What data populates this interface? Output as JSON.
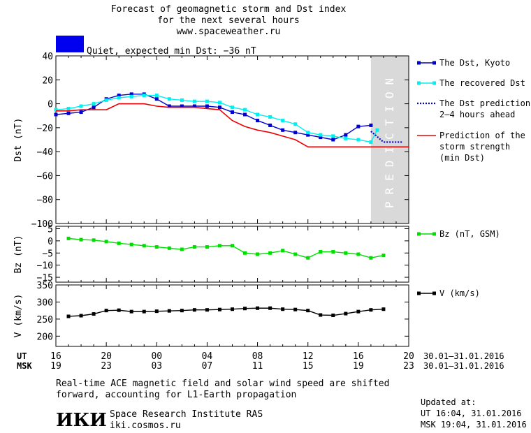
{
  "header": {
    "title_line1": "Forecast of geomagnetic storm and Dst index",
    "title_line2": "for the next several hours",
    "website": "www.spaceweather.ru",
    "status_color": "#0000ee",
    "status_text": "Quiet, expected min Dst: −36 nT"
  },
  "footer": {
    "note_line1": "Real-time ACE magnetic field and solar wind speed are shifted",
    "note_line2": "forward, accounting for L1-Earth propagation",
    "logo_text": "ИКИ",
    "institute": "Space Research Institute RAS",
    "institute_site": "iki.cosmos.ru",
    "updated_label": "Updated at:",
    "updated_ut": "UT   16:04, 31.01.2016",
    "updated_msk": "MSK 19:04, 31.01.2016"
  },
  "time_axis": {
    "ut_label": "UT",
    "msk_label": "MSK",
    "ut_ticks": [
      "16",
      "20",
      "00",
      "04",
      "08",
      "12",
      "16",
      "20"
    ],
    "msk_ticks": [
      "19",
      "23",
      "03",
      "07",
      "11",
      "15",
      "19",
      "23"
    ],
    "date_range_ut": "30.01–31.01.2016",
    "date_range_msk": "30.01–31.01.2016"
  },
  "chart_data": [
    {
      "type": "line",
      "ylabel": "Dst (nT)",
      "ylim": [
        -100,
        40
      ],
      "yticks": [
        "40",
        "20",
        "0",
        "−20",
        "−40",
        "−60",
        "−80",
        "−100"
      ],
      "ytick_values": [
        40,
        20,
        0,
        -20,
        -40,
        -60,
        -80,
        -100
      ],
      "xlim": [
        16,
        44
      ],
      "prediction_band": {
        "x_start": 41,
        "x_end": 44,
        "label": "PREDICTION",
        "color": "#d9d9d9"
      },
      "series": [
        {
          "name": "The Dst, Kyoto",
          "color": "#0000cc",
          "style": "solid-squares",
          "x": [
            16,
            17,
            18,
            19,
            20,
            21,
            22,
            23,
            24,
            25,
            26,
            27,
            28,
            29,
            30,
            31,
            32,
            33,
            34,
            35,
            36,
            37,
            38,
            39,
            40,
            41
          ],
          "y": [
            -9,
            -8,
            -7,
            -3,
            4,
            7,
            8,
            8,
            4,
            -2,
            -2,
            -2,
            -2,
            -3,
            -7,
            -9,
            -14,
            -18,
            -22,
            -24,
            -26,
            -28,
            -30,
            -26,
            -19,
            -18
          ]
        },
        {
          "name": "The recovered Dst",
          "color": "#00f0f0",
          "style": "solid-squares",
          "x": [
            16,
            17,
            18,
            19,
            20,
            21,
            22,
            23,
            24,
            25,
            26,
            27,
            28,
            29,
            30,
            31,
            32,
            33,
            34,
            35,
            36,
            37,
            38,
            39,
            40,
            41,
            41.5
          ],
          "y": [
            -5,
            -4,
            -2,
            0,
            3,
            5,
            6,
            7,
            7,
            4,
            3,
            2,
            2,
            1,
            -3,
            -5,
            -9,
            -11,
            -14,
            -17,
            -24,
            -26,
            -27,
            -29,
            -30,
            -32,
            -22
          ]
        },
        {
          "name": "The Dst prediction\n2–4 hours ahead",
          "color": "#0000cc",
          "style": "dotted",
          "x": [
            41,
            42,
            43.5
          ],
          "y": [
            -23,
            -32,
            -32
          ]
        },
        {
          "name": "Prediction of the\nstorm strength\n(min Dst)",
          "color": "#ee0000",
          "style": "solid",
          "x": [
            16,
            17,
            18,
            19,
            20,
            21,
            22,
            23,
            24,
            25,
            26,
            27,
            28,
            29,
            30,
            31,
            32,
            33,
            34,
            35,
            36,
            44
          ],
          "y": [
            -6,
            -6,
            -5,
            -5,
            -5,
            0,
            0,
            0,
            -2,
            -3,
            -3,
            -3,
            -4,
            -5,
            -14,
            -19,
            -22,
            -24,
            -27,
            -30,
            -36,
            -36
          ]
        }
      ]
    },
    {
      "type": "line",
      "ylabel": "Bz (nT)",
      "ylim": [
        -17,
        6
      ],
      "yticks": [
        "5",
        "0",
        "−5",
        "−10",
        "−15"
      ],
      "ytick_values": [
        5,
        0,
        -5,
        -10,
        -15
      ],
      "xlim": [
        16,
        44
      ],
      "series": [
        {
          "name": "Bz (nT, GSM)",
          "color": "#00dd00",
          "style": "solid-squares",
          "x": [
            17,
            18,
            19,
            20,
            21,
            22,
            23,
            24,
            25,
            26,
            27,
            28,
            29,
            30,
            31,
            32,
            33,
            34,
            35,
            36,
            37,
            38,
            39,
            40,
            41,
            42
          ],
          "y": [
            1,
            0.5,
            0.3,
            -0.3,
            -1,
            -1.5,
            -2,
            -2.5,
            -3,
            -3.5,
            -2.5,
            -2.5,
            -2,
            -2,
            -5,
            -5.5,
            -5,
            -4,
            -5.5,
            -7,
            -4.5,
            -4.5,
            -5,
            -5.5,
            -7,
            -6
          ]
        }
      ]
    },
    {
      "type": "line",
      "ylabel": "V (km/s)",
      "ylim": [
        170,
        350
      ],
      "yticks": [
        "350",
        "300",
        "250",
        "200"
      ],
      "ytick_values": [
        350,
        300,
        250,
        200
      ],
      "xlim": [
        16,
        44
      ],
      "series": [
        {
          "name": "V (km/s)",
          "color": "#000000",
          "style": "solid-squares",
          "x": [
            17,
            18,
            19,
            20,
            21,
            22,
            23,
            24,
            25,
            26,
            27,
            28,
            29,
            30,
            31,
            32,
            33,
            34,
            35,
            36,
            37,
            38,
            39,
            40,
            41,
            42
          ],
          "y": [
            258,
            260,
            265,
            275,
            276,
            272,
            272,
            273,
            274,
            275,
            277,
            277,
            278,
            279,
            281,
            282,
            282,
            279,
            278,
            275,
            262,
            261,
            266,
            272,
            277,
            279
          ]
        }
      ]
    }
  ]
}
